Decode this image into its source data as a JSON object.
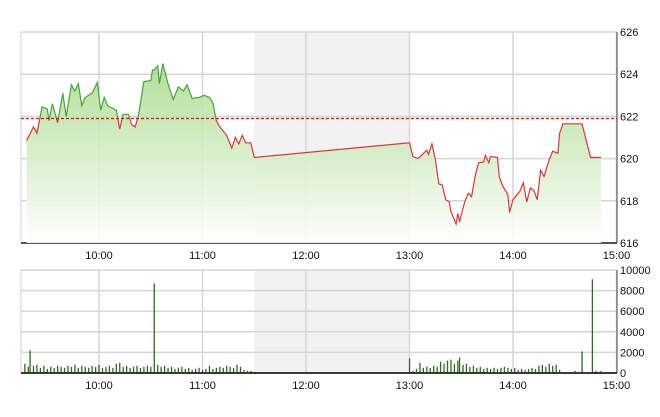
{
  "chart_data": [
    {
      "type": "area",
      "title": "",
      "xlabel": "",
      "ylabel": "",
      "ylim": [
        616,
        626
      ],
      "xlim": [
        "09:15",
        "15:00"
      ],
      "grid": true,
      "y_ticks": [
        "626",
        "624",
        "622",
        "620",
        "618",
        "616"
      ],
      "x_ticks": [
        "10:00",
        "11:00",
        "12:00",
        "13:00",
        "14:00",
        "15:00"
      ],
      "reference_line": 621.9,
      "shaded_break": [
        "11:30",
        "13:00"
      ],
      "colors": {
        "above": "#4aa33a",
        "below": "#d9363e",
        "reference": "#e00000",
        "fill_top": "#b9e3a0",
        "shade": "#f2f2f2"
      },
      "points": [
        [
          "09:18",
          620.85
        ],
        [
          "09:22",
          621.5
        ],
        [
          "09:24",
          621.2
        ],
        [
          "09:27",
          622.45
        ],
        [
          "09:30",
          622.35
        ],
        [
          "09:31",
          621.8
        ],
        [
          "09:33",
          622.6
        ],
        [
          "09:36",
          621.7
        ],
        [
          "09:39",
          623.1
        ],
        [
          "09:41",
          622.0
        ],
        [
          "09:44",
          623.5
        ],
        [
          "09:46",
          623.2
        ],
        [
          "09:48",
          623.55
        ],
        [
          "09:50",
          622.5
        ],
        [
          "09:52",
          622.9
        ],
        [
          "09:56",
          623.1
        ],
        [
          "09:59",
          623.6
        ],
        [
          "10:01",
          622.3
        ],
        [
          "10:03",
          622.9
        ],
        [
          "10:05",
          622.5
        ],
        [
          "10:10",
          622.3
        ],
        [
          "10:12",
          621.4
        ],
        [
          "10:14",
          622.1
        ],
        [
          "10:17",
          622.1
        ],
        [
          "10:19",
          621.6
        ],
        [
          "10:21",
          621.5
        ],
        [
          "10:23",
          622.1
        ],
        [
          "10:26",
          623.65
        ],
        [
          "10:30",
          623.7
        ],
        [
          "10:31",
          624.2
        ],
        [
          "10:32",
          624.2
        ],
        [
          "10:34",
          624.4
        ],
        [
          "10:35",
          623.55
        ],
        [
          "10:37",
          624.5
        ],
        [
          "10:40",
          623.55
        ],
        [
          "10:43",
          622.8
        ],
        [
          "10:46",
          623.4
        ],
        [
          "10:49",
          623.2
        ],
        [
          "10:51",
          623.5
        ],
        [
          "10:54",
          622.85
        ],
        [
          "10:58",
          622.9
        ],
        [
          "11:01",
          623.0
        ],
        [
          "11:04",
          622.9
        ],
        [
          "11:06",
          622.65
        ],
        [
          "11:08",
          621.8
        ],
        [
          "11:10",
          621.5
        ],
        [
          "11:14",
          621.1
        ],
        [
          "11:17",
          620.5
        ],
        [
          "11:19",
          621.0
        ],
        [
          "11:21",
          620.7
        ],
        [
          "11:23",
          621.1
        ],
        [
          "11:25",
          620.75
        ],
        [
          "11:28",
          620.75
        ],
        [
          "11:30",
          620.05
        ],
        [
          "13:00",
          620.75
        ],
        [
          "13:02",
          620.1
        ],
        [
          "13:05",
          620.0
        ],
        [
          "13:10",
          620.4
        ],
        [
          "13:11",
          620.2
        ],
        [
          "13:13",
          620.7
        ],
        [
          "13:15",
          619.95
        ],
        [
          "13:17",
          618.8
        ],
        [
          "13:19",
          618.75
        ],
        [
          "13:21",
          618.05
        ],
        [
          "13:23",
          617.95
        ],
        [
          "13:24",
          617.5
        ],
        [
          "13:27",
          616.9
        ],
        [
          "13:28",
          617.4
        ],
        [
          "13:29",
          617.0
        ],
        [
          "13:32",
          617.95
        ],
        [
          "13:34",
          618.35
        ],
        [
          "13:36",
          618.2
        ],
        [
          "13:38",
          619.15
        ],
        [
          "13:40",
          619.8
        ],
        [
          "13:43",
          619.85
        ],
        [
          "13:44",
          620.15
        ],
        [
          "13:46",
          619.8
        ],
        [
          "13:47",
          620.1
        ],
        [
          "13:51",
          620.05
        ],
        [
          "13:52",
          619.15
        ],
        [
          "13:54",
          618.7
        ],
        [
          "13:57",
          618.3
        ],
        [
          "13:58",
          617.45
        ],
        [
          "14:00",
          618.05
        ],
        [
          "14:04",
          618.45
        ],
        [
          "14:06",
          618.85
        ],
        [
          "14:08",
          617.95
        ],
        [
          "14:10",
          618.6
        ],
        [
          "14:12",
          618.5
        ],
        [
          "14:14",
          618.05
        ],
        [
          "14:16",
          619.45
        ],
        [
          "14:18",
          619.15
        ],
        [
          "14:21",
          619.95
        ],
        [
          "14:23",
          620.35
        ],
        [
          "14:26",
          620.25
        ],
        [
          "14:27",
          621.2
        ],
        [
          "14:29",
          621.65
        ],
        [
          "14:40",
          621.65
        ],
        [
          "14:45",
          620.05
        ],
        [
          "14:51",
          620.05
        ]
      ]
    },
    {
      "type": "bar",
      "title": "",
      "xlabel": "",
      "ylabel": "",
      "ylim": [
        0,
        10000
      ],
      "xlim": [
        "09:15",
        "15:00"
      ],
      "grid": true,
      "y_ticks": [
        "10000",
        "8000",
        "6000",
        "4000",
        "2000",
        "0"
      ],
      "x_ticks": [
        "10:00",
        "11:00",
        "12:00",
        "13:00",
        "14:00",
        "15:00"
      ],
      "shaded_break": [
        "11:30",
        "13:00"
      ],
      "colors": {
        "bar": "#2e6b1f",
        "shade": "#f2f2f2"
      },
      "bars": [
        [
          "09:17",
          900
        ],
        [
          "09:19",
          600
        ],
        [
          "09:20",
          2200
        ],
        [
          "09:22",
          700
        ],
        [
          "09:24",
          800
        ],
        [
          "09:26",
          500
        ],
        [
          "09:28",
          700
        ],
        [
          "09:30",
          400
        ],
        [
          "09:32",
          600
        ],
        [
          "09:34",
          500
        ],
        [
          "09:36",
          700
        ],
        [
          "09:38",
          600
        ],
        [
          "09:40",
          500
        ],
        [
          "09:42",
          700
        ],
        [
          "09:44",
          600
        ],
        [
          "09:46",
          800
        ],
        [
          "09:48",
          500
        ],
        [
          "09:50",
          700
        ],
        [
          "09:52",
          600
        ],
        [
          "09:54",
          500
        ],
        [
          "09:56",
          700
        ],
        [
          "09:58",
          600
        ],
        [
          "10:00",
          800
        ],
        [
          "10:02",
          500
        ],
        [
          "10:04",
          600
        ],
        [
          "10:06",
          700
        ],
        [
          "10:08",
          500
        ],
        [
          "10:10",
          900
        ],
        [
          "10:12",
          1000
        ],
        [
          "10:14",
          600
        ],
        [
          "10:16",
          700
        ],
        [
          "10:18",
          500
        ],
        [
          "10:20",
          600
        ],
        [
          "10:22",
          700
        ],
        [
          "10:24",
          500
        ],
        [
          "10:26",
          600
        ],
        [
          "10:28",
          700
        ],
        [
          "10:30",
          600
        ],
        [
          "10:32",
          8700
        ],
        [
          "10:34",
          800
        ],
        [
          "10:36",
          600
        ],
        [
          "10:38",
          700
        ],
        [
          "10:40",
          500
        ],
        [
          "10:42",
          600
        ],
        [
          "10:44",
          400
        ],
        [
          "10:46",
          500
        ],
        [
          "10:48",
          600
        ],
        [
          "10:50",
          400
        ],
        [
          "10:52",
          500
        ],
        [
          "10:54",
          300
        ],
        [
          "10:56",
          400
        ],
        [
          "10:58",
          500
        ],
        [
          "11:00",
          300
        ],
        [
          "11:02",
          400
        ],
        [
          "11:04",
          700
        ],
        [
          "11:06",
          400
        ],
        [
          "11:08",
          500
        ],
        [
          "11:10",
          600
        ],
        [
          "11:12",
          500
        ],
        [
          "11:14",
          700
        ],
        [
          "11:16",
          600
        ],
        [
          "11:18",
          500
        ],
        [
          "11:20",
          800
        ],
        [
          "11:22",
          600
        ],
        [
          "11:24",
          300
        ],
        [
          "11:26",
          200
        ],
        [
          "11:28",
          200
        ],
        [
          "11:30",
          100
        ],
        [
          "13:00",
          1400
        ],
        [
          "13:02",
          200
        ],
        [
          "13:04",
          400
        ],
        [
          "13:06",
          1000
        ],
        [
          "13:08",
          500
        ],
        [
          "13:10",
          600
        ],
        [
          "13:12",
          500
        ],
        [
          "13:14",
          700
        ],
        [
          "13:16",
          600
        ],
        [
          "13:18",
          1100
        ],
        [
          "13:20",
          900
        ],
        [
          "13:22",
          1200
        ],
        [
          "13:24",
          1300
        ],
        [
          "13:26",
          900
        ],
        [
          "13:28",
          1200
        ],
        [
          "13:29",
          1500
        ],
        [
          "13:31",
          800
        ],
        [
          "13:33",
          900
        ],
        [
          "13:35",
          600
        ],
        [
          "13:37",
          700
        ],
        [
          "13:39",
          500
        ],
        [
          "13:41",
          600
        ],
        [
          "13:43",
          400
        ],
        [
          "13:45",
          500
        ],
        [
          "13:47",
          400
        ],
        [
          "13:49",
          500
        ],
        [
          "13:51",
          400
        ],
        [
          "13:53",
          500
        ],
        [
          "13:55",
          600
        ],
        [
          "13:57",
          500
        ],
        [
          "13:59",
          400
        ],
        [
          "14:01",
          500
        ],
        [
          "14:03",
          300
        ],
        [
          "14:05",
          400
        ],
        [
          "14:07",
          300
        ],
        [
          "14:09",
          400
        ],
        [
          "14:11",
          500
        ],
        [
          "14:13",
          400
        ],
        [
          "14:15",
          700
        ],
        [
          "14:17",
          800
        ],
        [
          "14:19",
          600
        ],
        [
          "14:21",
          900
        ],
        [
          "14:23",
          700
        ],
        [
          "14:25",
          800
        ],
        [
          "14:27",
          300
        ],
        [
          "14:36",
          200
        ],
        [
          "14:40",
          2100
        ],
        [
          "14:46",
          9100
        ],
        [
          "14:48",
          200
        ],
        [
          "14:51",
          200
        ]
      ]
    }
  ]
}
